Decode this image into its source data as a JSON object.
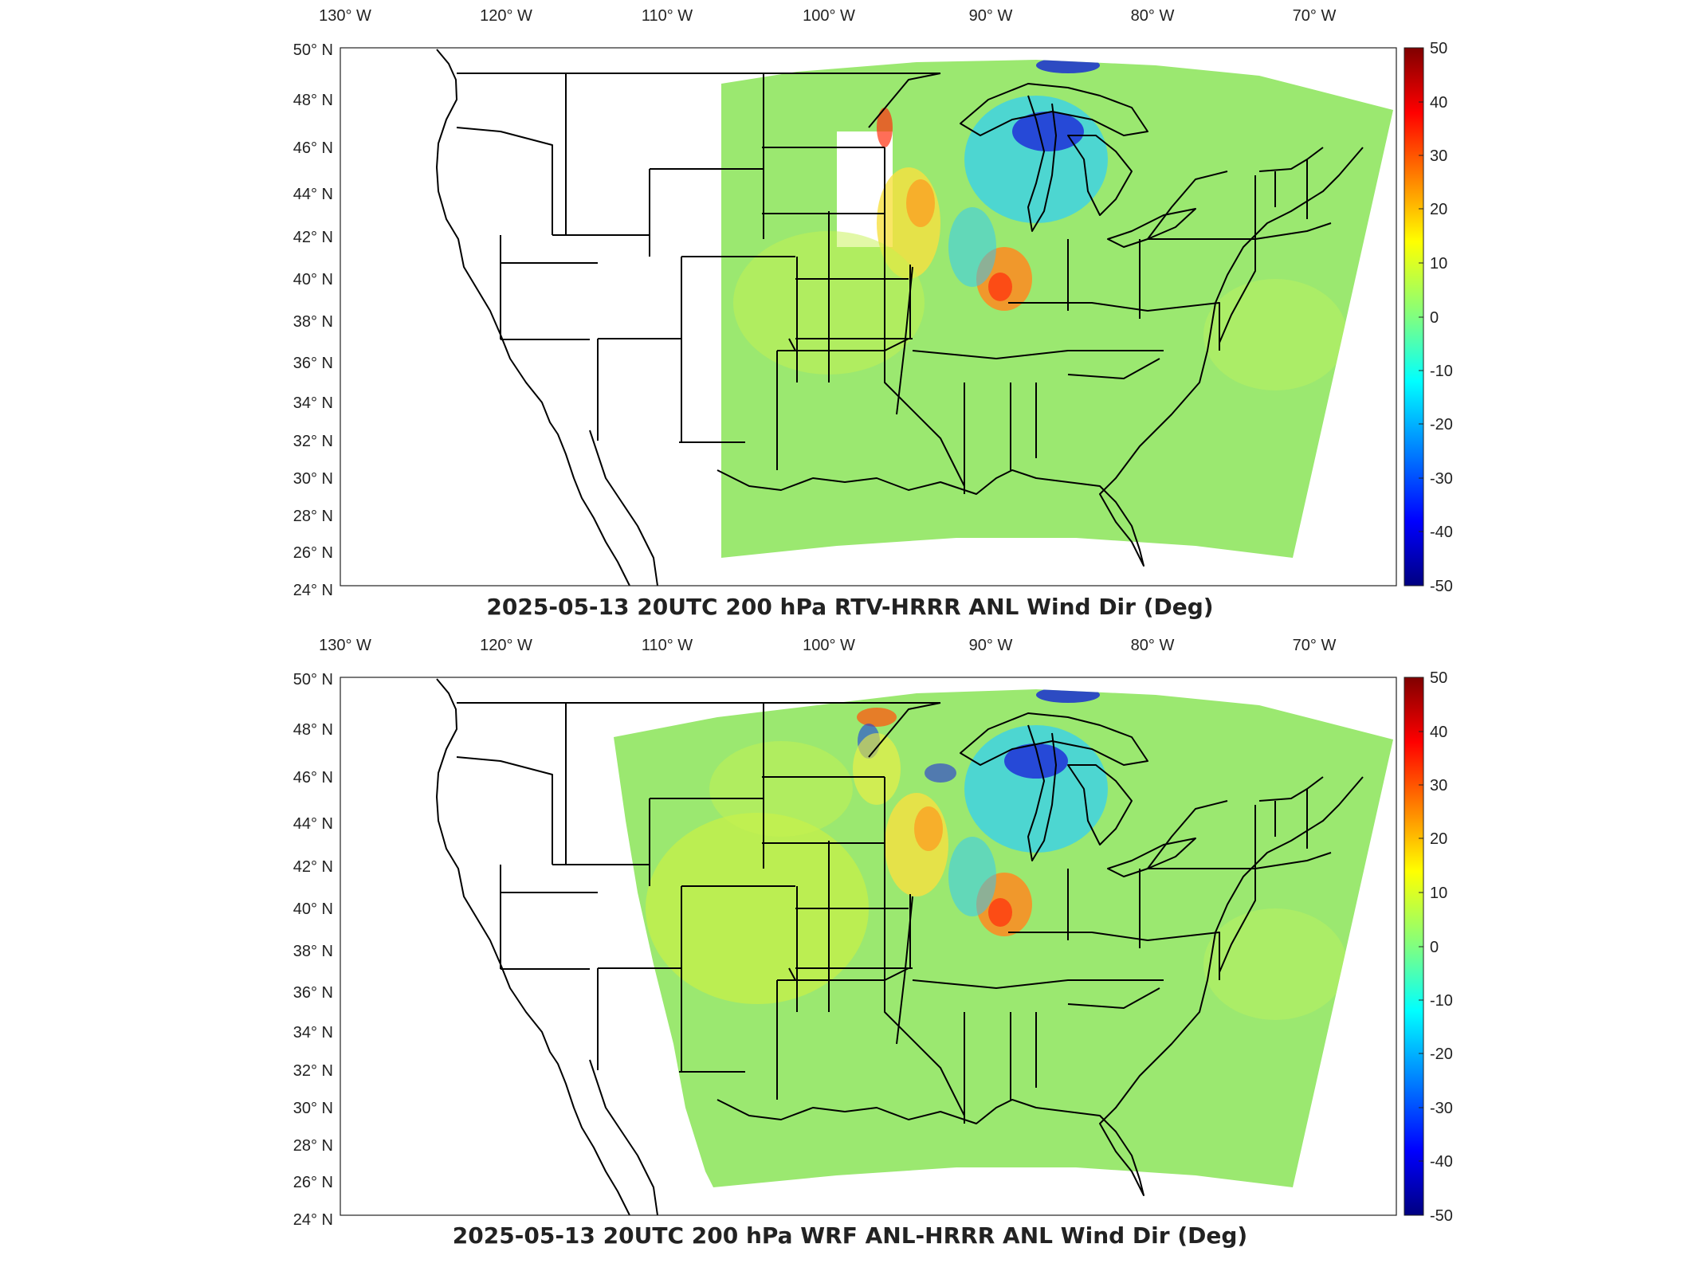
{
  "panels": [
    {
      "title": "2025-05-13 20UTC 200 hPa RTV-HRRR ANL Wind Dir (Deg)",
      "variant": "rtv"
    },
    {
      "title": "2025-05-13 20UTC 200 hPa WRF ANL-HRRR ANL Wind Dir (Deg)",
      "variant": "wrf"
    }
  ],
  "lon_ticks": [
    "130",
    "120",
    "110",
    "100",
    "90",
    "80",
    "70"
  ],
  "lat_ticks": [
    "50",
    "48",
    "46",
    "44",
    "42",
    "40",
    "38",
    "36",
    "34",
    "32",
    "30",
    "28",
    "26",
    "24"
  ],
  "lon_suffix": "W",
  "lat_suffix": "N",
  "degree_symbol": "°",
  "colorbar": {
    "ticks": [
      "50",
      "40",
      "30",
      "20",
      "10",
      "0",
      "-10",
      "-20",
      "-30",
      "-40",
      "-50"
    ],
    "colormap": "jet",
    "range": [
      -50,
      50
    ]
  },
  "colors": {
    "field_background": "#9be870",
    "outline": "#000000"
  }
}
